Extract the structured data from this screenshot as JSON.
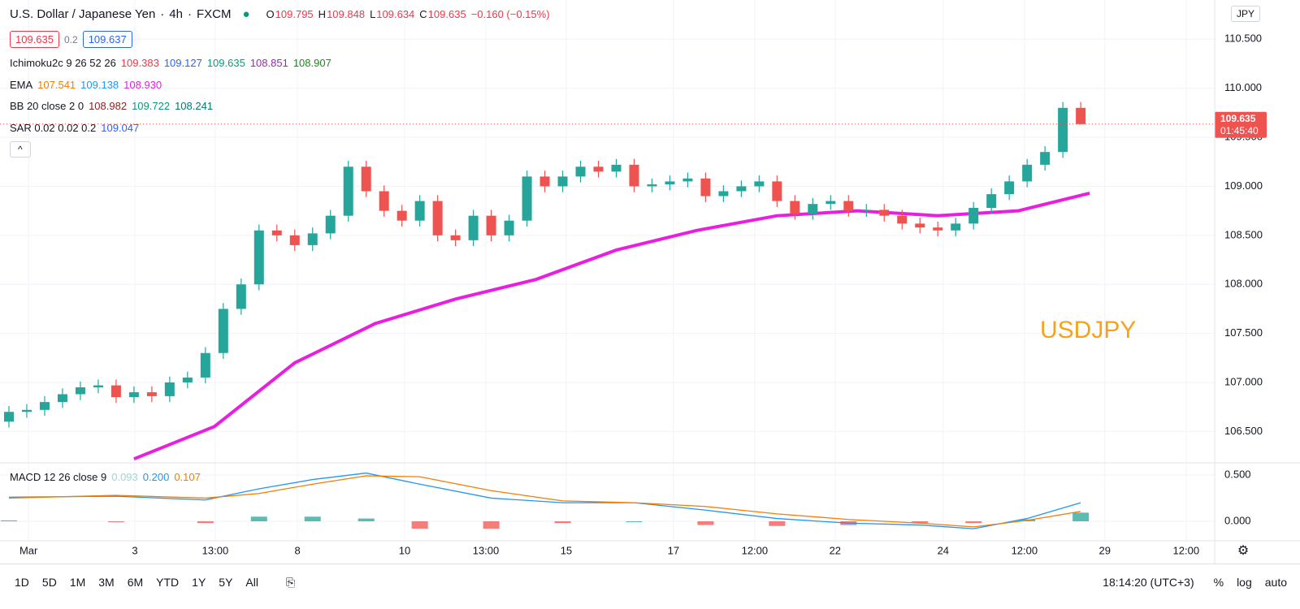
{
  "header": {
    "symbol": "U.S. Dollar / Japanese Yen",
    "interval": "4h",
    "exchange": "FXCM",
    "ohlc": [
      [
        "O",
        "109.795"
      ],
      [
        "H",
        "109.848"
      ],
      [
        "L",
        "109.634"
      ],
      [
        "C",
        "109.635"
      ]
    ],
    "change": "−0.160 (−0.15%)",
    "bid": "109.635",
    "spread": "0.2",
    "ask": "109.637",
    "currency": "JPY"
  },
  "indicators": [
    {
      "name": "Ichimoku2c 9 26 52 26",
      "values": [
        [
          "109.383",
          "#f23645"
        ],
        [
          "109.127",
          "#2962ff"
        ],
        [
          "109.635",
          "#089981"
        ],
        [
          "108.851",
          "#9c27b0"
        ],
        [
          "108.907",
          "#1b8a1b"
        ]
      ]
    },
    {
      "name": "EMA",
      "values": [
        [
          "107.541",
          "#f57c00"
        ],
        [
          "109.138",
          "#2196f3"
        ],
        [
          "108.930",
          "#e91ee0"
        ]
      ]
    },
    {
      "name": "BB 20 close 2 0",
      "values": [
        [
          "108.982",
          "#8d1e1e"
        ],
        [
          "109.722",
          "#089981"
        ],
        [
          "108.241",
          "#00796b"
        ]
      ]
    },
    {
      "name": "SAR 0.02 0.02 0.2",
      "values": [
        [
          "109.047",
          "#2962ff"
        ]
      ]
    }
  ],
  "chart_data": [
    {
      "type": "candlestick",
      "annotation": "USDJPY",
      "price_label": "109.635",
      "countdown": "01:45:40",
      "up_color": "#26a69a",
      "down_color": "#ef5350",
      "x": [
        1,
        3,
        5,
        7,
        9,
        11,
        13,
        15,
        17,
        19,
        21,
        23,
        25,
        27,
        29,
        31,
        33,
        35,
        37,
        39,
        41,
        43,
        45,
        47,
        49,
        51,
        53,
        55,
        57,
        59,
        61,
        63,
        65,
        67,
        69,
        71,
        73,
        75,
        77,
        79,
        81,
        83,
        85,
        87,
        89,
        91,
        93,
        95,
        97,
        99,
        101,
        103,
        105,
        107,
        109,
        111,
        113,
        115,
        117,
        119,
        121
      ],
      "open": [
        106.6,
        106.7,
        106.72,
        106.8,
        106.88,
        106.95,
        106.97,
        106.85,
        106.9,
        106.86,
        107.0,
        107.05,
        107.3,
        107.75,
        108.0,
        108.55,
        108.5,
        108.4,
        108.52,
        108.7,
        109.2,
        108.95,
        108.75,
        108.65,
        108.85,
        108.5,
        108.45,
        108.7,
        108.5,
        108.65,
        109.1,
        109.0,
        109.1,
        109.2,
        109.15,
        109.22,
        109.0,
        109.02,
        109.05,
        109.08,
        108.9,
        108.95,
        109.0,
        109.05,
        108.85,
        108.72,
        108.82,
        108.85,
        108.75,
        108.76,
        108.7,
        108.62,
        108.58,
        108.55,
        108.62,
        108.78,
        108.92,
        109.05,
        109.22,
        109.35,
        109.8
      ],
      "high": [
        106.76,
        106.78,
        106.86,
        106.94,
        107.01,
        107.03,
        107.03,
        106.96,
        106.96,
        107.06,
        107.11,
        107.36,
        107.81,
        108.06,
        108.61,
        108.61,
        108.56,
        108.58,
        108.76,
        109.26,
        109.26,
        109.01,
        108.81,
        108.91,
        108.91,
        108.56,
        108.76,
        108.76,
        108.71,
        109.16,
        109.16,
        109.16,
        109.26,
        109.26,
        109.28,
        109.28,
        109.08,
        109.11,
        109.14,
        109.14,
        109.01,
        109.06,
        109.11,
        109.11,
        108.91,
        108.88,
        108.91,
        108.91,
        108.82,
        108.82,
        108.76,
        108.68,
        108.64,
        108.68,
        108.84,
        108.98,
        109.11,
        109.28,
        109.41,
        109.86,
        109.86
      ],
      "low": [
        106.54,
        106.64,
        106.66,
        106.74,
        106.82,
        106.89,
        106.79,
        106.79,
        106.8,
        106.8,
        106.94,
        106.99,
        107.24,
        107.69,
        107.94,
        108.44,
        108.34,
        108.34,
        108.46,
        108.64,
        108.89,
        108.69,
        108.59,
        108.59,
        108.44,
        108.39,
        108.39,
        108.44,
        108.44,
        108.59,
        108.94,
        108.94,
        109.04,
        109.09,
        109.09,
        108.94,
        108.94,
        108.96,
        108.99,
        108.84,
        108.84,
        108.89,
        108.94,
        108.79,
        108.66,
        108.66,
        108.76,
        108.69,
        108.69,
        108.64,
        108.56,
        108.52,
        108.49,
        108.49,
        108.56,
        108.72,
        108.86,
        108.99,
        109.16,
        109.29,
        109.63
      ],
      "close": [
        106.7,
        106.72,
        106.8,
        106.88,
        106.95,
        106.97,
        106.85,
        106.9,
        106.86,
        107.0,
        107.05,
        107.3,
        107.75,
        108.0,
        108.55,
        108.5,
        108.4,
        108.52,
        108.7,
        109.2,
        108.95,
        108.75,
        108.65,
        108.85,
        108.5,
        108.45,
        108.7,
        108.5,
        108.65,
        109.1,
        109.0,
        109.1,
        109.2,
        109.15,
        109.22,
        109.0,
        109.02,
        109.05,
        109.08,
        108.9,
        108.95,
        109.0,
        109.05,
        108.85,
        108.72,
        108.82,
        108.85,
        108.75,
        108.76,
        108.7,
        108.62,
        108.58,
        108.55,
        108.62,
        108.78,
        108.92,
        109.05,
        109.22,
        109.35,
        109.8,
        109.635
      ],
      "overlay": {
        "color": "#e91ee0",
        "x": [
          15,
          24,
          33,
          42,
          51,
          60,
          69,
          78,
          87,
          96,
          105,
          114,
          122
        ],
        "values": [
          106.22,
          106.55,
          107.2,
          107.6,
          107.85,
          108.05,
          108.35,
          108.55,
          108.7,
          108.75,
          108.7,
          108.75,
          108.93
        ]
      },
      "xlim": [
        0,
        136
      ],
      "ylim": [
        106.18,
        110.9
      ],
      "yticks": [
        {
          "value": 106.5,
          "label": "106.500"
        },
        {
          "value": 107,
          "label": "107.000"
        },
        {
          "value": 107.5,
          "label": "107.500"
        },
        {
          "value": 108,
          "label": "108.000"
        },
        {
          "value": 108.5,
          "label": "108.500"
        },
        {
          "value": 109,
          "label": "109.000"
        },
        {
          "value": 109.5,
          "label": "109.500"
        },
        {
          "value": 110,
          "label": "110.000"
        },
        {
          "value": 110.5,
          "label": "110.500"
        }
      ],
      "xticks": [
        {
          "value": 3.2,
          "label": "Mar"
        },
        {
          "value": 15.1,
          "label": "3"
        },
        {
          "value": 24.1,
          "label": "13:00"
        },
        {
          "value": 33.3,
          "label": "8"
        },
        {
          "value": 45.3,
          "label": "10"
        },
        {
          "value": 54.4,
          "label": "13:00"
        },
        {
          "value": 63.4,
          "label": "15"
        },
        {
          "value": 75.4,
          "label": "17"
        },
        {
          "value": 84.5,
          "label": "12:00"
        },
        {
          "value": 93.5,
          "label": "22"
        },
        {
          "value": 105.6,
          "label": "24"
        },
        {
          "value": 114.7,
          "label": "12:00"
        },
        {
          "value": 123.7,
          "label": "29"
        },
        {
          "value": 132.8,
          "label": "12:00"
        }
      ],
      "grid": true
    },
    {
      "type": "macd",
      "title": "MACD 12 26 close 9",
      "value_labels": [
        [
          "0.093",
          "#9fd8d2"
        ],
        [
          "0.200",
          "#2196f3"
        ],
        [
          "0.107",
          "#f57c00"
        ]
      ],
      "x": [
        1,
        13,
        23,
        29,
        35,
        41,
        47,
        55,
        63,
        71,
        79,
        87,
        95,
        103,
        109,
        115,
        121
      ],
      "series": [
        {
          "color": "#2196f3",
          "values": [
            0.26,
            0.27,
            0.23,
            0.35,
            0.45,
            0.52,
            0.4,
            0.25,
            0.2,
            0.2,
            0.12,
            0.03,
            -0.02,
            -0.04,
            -0.08,
            0.03,
            0.2
          ]
        },
        {
          "color": "#f57c00",
          "values": [
            0.25,
            0.28,
            0.25,
            0.3,
            0.4,
            0.49,
            0.48,
            0.33,
            0.22,
            0.2,
            0.16,
            0.08,
            0.02,
            -0.02,
            -0.06,
            0.01,
            0.107
          ]
        }
      ],
      "histogram": {
        "up_color": "#26a69a",
        "down_color": "#ef5350",
        "values": [
          0.01,
          -0.01,
          -0.02,
          0.05,
          0.05,
          0.03,
          -0.08,
          -0.08,
          -0.02,
          0.0,
          -0.04,
          -0.05,
          -0.04,
          -0.02,
          -0.02,
          0.02,
          0.093
        ]
      },
      "xlim": [
        0,
        136
      ],
      "ylim": [
        -0.21,
        0.63
      ],
      "yticks": [
        {
          "value": 0,
          "label": "0.000"
        },
        {
          "value": 0.5,
          "label": "0.500"
        }
      ],
      "grid": true
    }
  ],
  "toolbar": {
    "ranges": [
      "1D",
      "5D",
      "1M",
      "3M",
      "6M",
      "YTD",
      "1Y",
      "5Y",
      "All"
    ],
    "clock": "18:14:20 (UTC+3)",
    "options": [
      "%",
      "log",
      "auto"
    ]
  }
}
